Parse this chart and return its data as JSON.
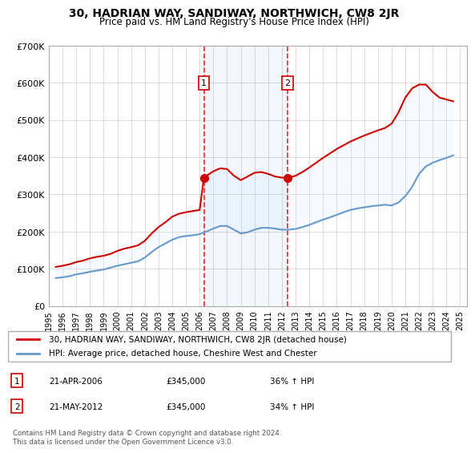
{
  "title": "30, HADRIAN WAY, SANDIWAY, NORTHWICH, CW8 2JR",
  "subtitle": "Price paid vs. HM Land Registry's House Price Index (HPI)",
  "ylabel": "",
  "xlabel": "",
  "ylim": [
    0,
    700000
  ],
  "xlim_start": 1995.0,
  "xlim_end": 2025.5,
  "yticks": [
    0,
    100000,
    200000,
    300000,
    400000,
    500000,
    600000,
    700000
  ],
  "ytick_labels": [
    "£0",
    "£100K",
    "£200K",
    "£300K",
    "£400K",
    "£500K",
    "£600K",
    "£700K"
  ],
  "xticks": [
    1995,
    1996,
    1997,
    1998,
    1999,
    2000,
    2001,
    2002,
    2003,
    2004,
    2005,
    2006,
    2007,
    2008,
    2009,
    2010,
    2011,
    2012,
    2013,
    2014,
    2015,
    2016,
    2017,
    2018,
    2019,
    2020,
    2021,
    2022,
    2023,
    2024,
    2025
  ],
  "red_color": "#cc0000",
  "blue_color": "#6699cc",
  "shade_color": "#ddeeff",
  "transaction1_x": 2006.31,
  "transaction1_y": 345000,
  "transaction2_x": 2012.39,
  "transaction2_y": 345000,
  "legend_label_red": "30, HADRIAN WAY, SANDIWAY, NORTHWICH, CW8 2JR (detached house)",
  "legend_label_blue": "HPI: Average price, detached house, Cheshire West and Chester",
  "table_rows": [
    {
      "num": "1",
      "date": "21-APR-2006",
      "price": "£345,000",
      "hpi": "36% ↑ HPI"
    },
    {
      "num": "2",
      "date": "21-MAY-2012",
      "price": "£345,000",
      "hpi": "34% ↑ HPI"
    }
  ],
  "footnote": "Contains HM Land Registry data © Crown copyright and database right 2024.\nThis data is licensed under the Open Government Licence v3.0.",
  "hpi_data": {
    "years": [
      1995.5,
      1996,
      1996.5,
      1997,
      1997.5,
      1998,
      1998.5,
      1999,
      1999.5,
      2000,
      2000.5,
      2001,
      2001.5,
      2002,
      2002.5,
      2003,
      2003.5,
      2004,
      2004.5,
      2005,
      2005.5,
      2006,
      2006.5,
      2007,
      2007.5,
      2008,
      2008.5,
      2009,
      2009.5,
      2010,
      2010.5,
      2011,
      2011.5,
      2012,
      2012.5,
      2013,
      2013.5,
      2014,
      2014.5,
      2015,
      2015.5,
      2016,
      2016.5,
      2017,
      2017.5,
      2018,
      2018.5,
      2019,
      2019.5,
      2020,
      2020.5,
      2021,
      2021.5,
      2022,
      2022.5,
      2023,
      2023.5,
      2024,
      2024.5
    ],
    "values": [
      75000,
      77000,
      80000,
      85000,
      88000,
      92000,
      95000,
      98000,
      103000,
      108000,
      112000,
      116000,
      120000,
      130000,
      145000,
      158000,
      168000,
      178000,
      185000,
      188000,
      190000,
      193000,
      200000,
      208000,
      215000,
      215000,
      205000,
      195000,
      198000,
      205000,
      210000,
      210000,
      208000,
      205000,
      205000,
      207000,
      212000,
      218000,
      225000,
      232000,
      238000,
      245000,
      252000,
      258000,
      262000,
      265000,
      268000,
      270000,
      272000,
      270000,
      278000,
      295000,
      320000,
      355000,
      375000,
      385000,
      392000,
      398000,
      405000
    ]
  },
  "red_data": {
    "years": [
      1995.5,
      1996,
      1996.5,
      1997,
      1997.5,
      1998,
      1998.5,
      1999,
      1999.5,
      2000,
      2000.5,
      2001,
      2001.5,
      2002,
      2002.5,
      2003,
      2003.5,
      2004,
      2004.5,
      2005,
      2005.5,
      2006,
      2006.31,
      2006.5,
      2007,
      2007.5,
      2008,
      2008.5,
      2009,
      2009.5,
      2010,
      2010.5,
      2011,
      2011.5,
      2012,
      2012.39,
      2012.5,
      2013,
      2013.5,
      2014,
      2014.5,
      2015,
      2015.5,
      2016,
      2016.5,
      2017,
      2017.5,
      2018,
      2018.5,
      2019,
      2019.5,
      2020,
      2020.5,
      2021,
      2021.5,
      2022,
      2022.5,
      2023,
      2023.5,
      2024,
      2024.5
    ],
    "values": [
      105000,
      108000,
      112000,
      118000,
      122000,
      128000,
      132000,
      135000,
      140000,
      148000,
      154000,
      158000,
      163000,
      175000,
      195000,
      212000,
      225000,
      240000,
      248000,
      252000,
      255000,
      258000,
      345000,
      350000,
      362000,
      370000,
      368000,
      350000,
      338000,
      348000,
      358000,
      360000,
      355000,
      348000,
      345000,
      345000,
      345000,
      350000,
      360000,
      372000,
      385000,
      398000,
      410000,
      422000,
      432000,
      442000,
      450000,
      458000,
      465000,
      472000,
      478000,
      490000,
      520000,
      560000,
      585000,
      595000,
      595000,
      575000,
      560000,
      555000,
      550000
    ]
  }
}
